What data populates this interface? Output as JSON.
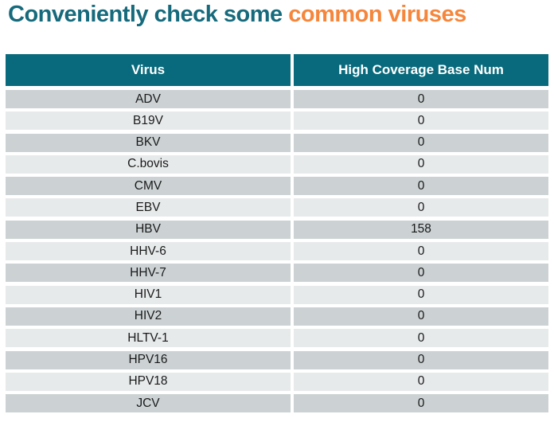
{
  "title": {
    "part1": "Conveniently check some",
    "part2": "common viruses"
  },
  "colors": {
    "title_teal": "#166a7c",
    "title_orange": "#f5863b",
    "header_bg": "#086a7c",
    "header_text": "#ffffff",
    "row_dark": "#ccd2d4",
    "row_light": "#e7eaeb"
  },
  "table": {
    "columns": [
      "Virus",
      "High Coverage Base Num"
    ],
    "rows": [
      {
        "virus": "ADV",
        "value": "0"
      },
      {
        "virus": "B19V",
        "value": "0"
      },
      {
        "virus": "BKV",
        "value": "0"
      },
      {
        "virus": "C.bovis",
        "value": "0"
      },
      {
        "virus": "CMV",
        "value": "0"
      },
      {
        "virus": "EBV",
        "value": "0"
      },
      {
        "virus": "HBV",
        "value": "158"
      },
      {
        "virus": "HHV-6",
        "value": "0"
      },
      {
        "virus": "HHV-7",
        "value": "0"
      },
      {
        "virus": "HIV1",
        "value": "0"
      },
      {
        "virus": "HIV2",
        "value": "0"
      },
      {
        "virus": "HLTV-1",
        "value": "0"
      },
      {
        "virus": "HPV16",
        "value": "0"
      },
      {
        "virus": "HPV18",
        "value": "0"
      },
      {
        "virus": "JCV",
        "value": "0"
      }
    ]
  },
  "chart_data": {
    "type": "table",
    "title": "Conveniently check some common viruses",
    "columns": [
      "Virus",
      "High Coverage Base Num"
    ],
    "rows": [
      [
        "ADV",
        0
      ],
      [
        "B19V",
        0
      ],
      [
        "BKV",
        0
      ],
      [
        "C.bovis",
        0
      ],
      [
        "CMV",
        0
      ],
      [
        "EBV",
        0
      ],
      [
        "HBV",
        158
      ],
      [
        "HHV-6",
        0
      ],
      [
        "HHV-7",
        0
      ],
      [
        "HIV1",
        0
      ],
      [
        "HIV2",
        0
      ],
      [
        "HLTV-1",
        0
      ],
      [
        "HPV16",
        0
      ],
      [
        "HPV18",
        0
      ],
      [
        "JCV",
        0
      ]
    ]
  }
}
